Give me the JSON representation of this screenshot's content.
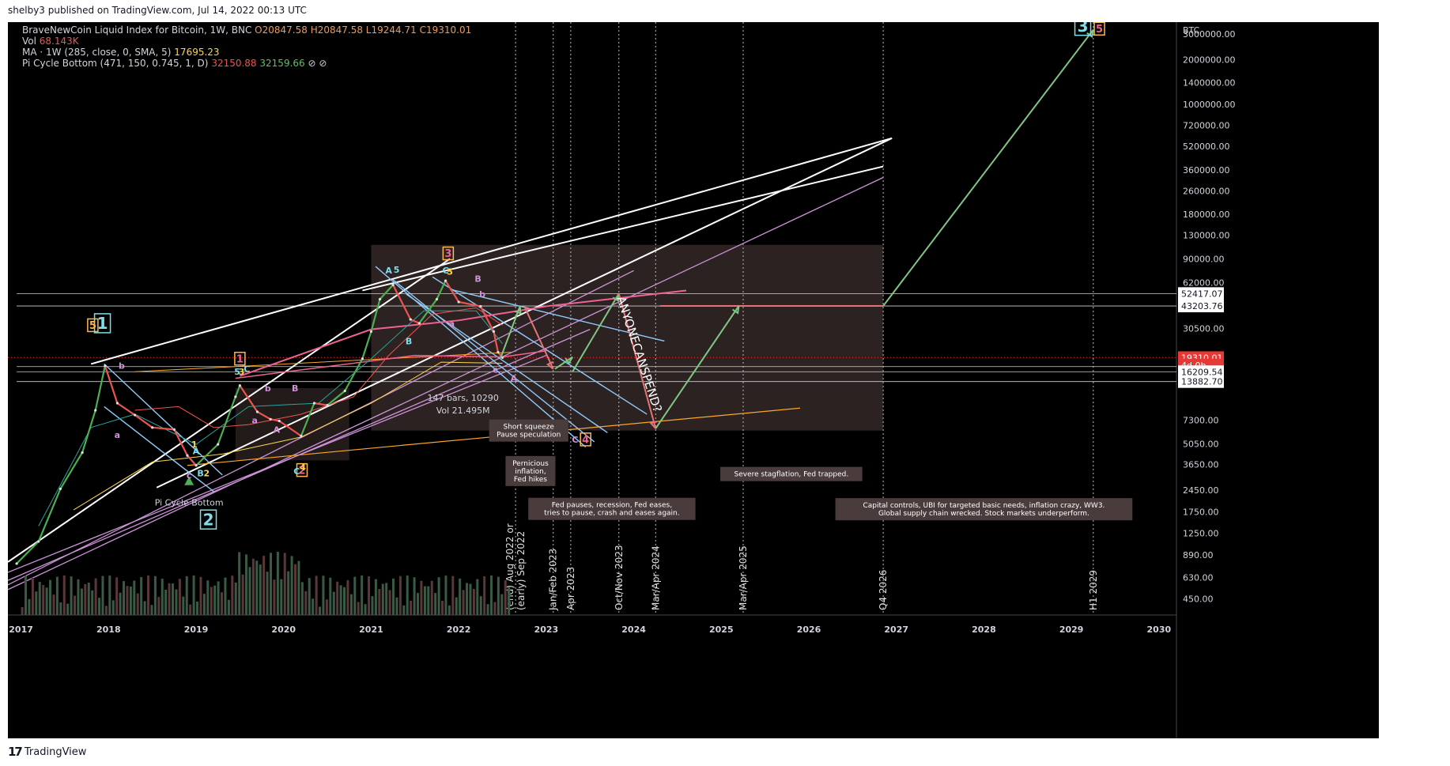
{
  "header": {
    "published": "shelby3 published on TradingView.com, Jul 14, 2022 00:13 UTC"
  },
  "legend": {
    "symbol": "BraveNewCoin Liquid Index for Bitcoin, 1W, BNC",
    "open": "O20847.58",
    "high": "H20847.58",
    "low": "L19244.71",
    "close": "C19310.01",
    "vol_label": "Vol",
    "vol": "68.143K",
    "ma_label": "MA · 1W (285, close, 0, SMA, 5)",
    "ma": "17695.23",
    "pi_label": "Pi Cycle Bottom (471, 150, 0.745, 1, D)",
    "pi1": "32150.88",
    "pi2": "32159.66",
    "pi_icons": "⊘ ⊘"
  },
  "footer": {
    "brand": "TradingView",
    "logo_glyph": "17"
  },
  "colors": {
    "bg": "#000000",
    "up": "#26a69a",
    "down": "#ef5350",
    "price_label": "#e53935",
    "wave_cyan": "#80deea",
    "wave_pink": "#f06292",
    "wave_yellow": "#ffd54f",
    "wave_purple": "#ce93d8",
    "channel_blue": "#90caf9",
    "proj_green": "#81c784",
    "proj_red": "#e57373"
  },
  "chart_data": {
    "type": "line",
    "title": "",
    "y_scale": "log",
    "y_unit": "BTC",
    "ylim": [
      350,
      3600000
    ],
    "xlim": [
      2016.85,
      2030.2
    ],
    "x_ticks": [
      "2017",
      "2018",
      "2019",
      "2020",
      "2021",
      "2022",
      "2023",
      "2024",
      "2025",
      "2026",
      "2027",
      "2028",
      "2029",
      "2030"
    ],
    "y_ticks": [
      "3000000.00",
      "2000000.00",
      "1400000.00",
      "1000000.00",
      "720000.00",
      "520000.00",
      "360000.00",
      "260000.00",
      "180000.00",
      "130000.00",
      "90000.00",
      "62000.00",
      "30500.00",
      "7300.00",
      "5050.00",
      "3650.00",
      "2450.00",
      "1750.00",
      "1250.00",
      "890.00",
      "630.00",
      "450.00"
    ],
    "price_labels": [
      {
        "text": "52417.07",
        "y": 52417,
        "style": "white"
      },
      {
        "text": "43203.76",
        "y": 43203,
        "style": "white"
      },
      {
        "text": "19310.01",
        "y": 19310,
        "style": "red"
      },
      {
        "text": "4d 0h",
        "y": 17200,
        "style": "red"
      },
      {
        "text": "16209.54",
        "y": 15500,
        "style": "white"
      },
      {
        "text": "13882.70",
        "y": 13300,
        "style": "white"
      }
    ],
    "series": [
      {
        "name": "BTC",
        "x": [
          2016.95,
          2017.2,
          2017.45,
          2017.7,
          2017.85,
          2017.96,
          2018.1,
          2018.3,
          2018.5,
          2018.75,
          2018.9,
          2019.0,
          2019.25,
          2019.45,
          2019.5,
          2019.7,
          2019.85,
          2019.95,
          2020.2,
          2020.35,
          2020.5,
          2020.7,
          2020.9,
          2021.0,
          2021.1,
          2021.25,
          2021.45,
          2021.55,
          2021.75,
          2021.85,
          2022.0,
          2022.25,
          2022.4,
          2022.45,
          2022.5
        ],
        "y": [
          780,
          1100,
          2500,
          4400,
          8500,
          17000,
          9500,
          7900,
          6500,
          6300,
          4200,
          3600,
          5000,
          10500,
          12500,
          8300,
          7400,
          7200,
          5700,
          9500,
          9200,
          11500,
          19000,
          29000,
          48000,
          60000,
          35000,
          33000,
          48000,
          64000,
          46000,
          43000,
          29000,
          21000,
          19310
        ]
      }
    ],
    "vertical_markers": [
      {
        "x": 2022.65,
        "label": "(end) Aug 2022 or\n(early) Sep 2022"
      },
      {
        "x": 2023.08,
        "label": "Jan/Feb 2023"
      },
      {
        "x": 2023.28,
        "label": "Apr 2023"
      },
      {
        "x": 2023.83,
        "label": "Oct/Nov 2023"
      },
      {
        "x": 2024.25,
        "label": "Mar/Apr 2024"
      },
      {
        "x": 2025.25,
        "label": "Mar/Apr 2025"
      },
      {
        "x": 2026.85,
        "label": "Q4 2026"
      },
      {
        "x": 2029.25,
        "label": "H1 2029"
      }
    ],
    "wave_labels": [
      {
        "text": "1",
        "x": 2017.93,
        "y": 33000,
        "color": "cyan",
        "boxed": true,
        "size": "large"
      },
      {
        "text": "5",
        "x": 2017.82,
        "y": 32000,
        "color": "orange",
        "boxed": true
      },
      {
        "text": "2",
        "x": 2019.14,
        "y": 1550,
        "color": "cyan",
        "boxed": true,
        "size": "large"
      },
      {
        "text": "1",
        "x": 2019.5,
        "y": 19000,
        "color": "pink",
        "boxed": true
      },
      {
        "text": "2",
        "x": 2020.21,
        "y": 3350,
        "color": "pink",
        "boxed": true
      },
      {
        "text": "3",
        "x": 2021.88,
        "y": 98000,
        "color": "pink",
        "boxed": true
      },
      {
        "text": "4",
        "x": 2023.45,
        "y": 5400,
        "color": "pink",
        "boxed": true
      },
      {
        "text": "3",
        "x": 2029.13,
        "y": 3400000,
        "color": "cyan",
        "boxed": true,
        "size": "large"
      },
      {
        "text": "5",
        "x": 2029.32,
        "y": 3250000,
        "color": "pink",
        "boxed": true
      },
      {
        "text": "b",
        "x": 2018.15,
        "y": 17000,
        "color": "purple"
      },
      {
        "text": "a",
        "x": 2018.1,
        "y": 5800,
        "color": "purple"
      },
      {
        "text": "c",
        "x": 2018.92,
        "y": 3100,
        "color": "purple"
      },
      {
        "text": "A",
        "x": 2019.0,
        "y": 4500,
        "color": "cyan"
      },
      {
        "text": "B",
        "x": 2019.05,
        "y": 3200,
        "color": "cyan"
      },
      {
        "text": "2",
        "x": 2019.12,
        "y": 3200,
        "color": "yellow"
      },
      {
        "text": "1",
        "x": 2018.98,
        "y": 5000,
        "color": "yellow"
      },
      {
        "text": "5",
        "x": 2019.47,
        "y": 15500,
        "color": "cyan"
      },
      {
        "text": "3",
        "x": 2019.52,
        "y": 15500,
        "color": "yellow"
      },
      {
        "text": "C",
        "x": 2019.58,
        "y": 16200,
        "color": "cyan"
      },
      {
        "text": "b",
        "x": 2019.82,
        "y": 12000,
        "color": "purple"
      },
      {
        "text": "B",
        "x": 2020.13,
        "y": 12000,
        "color": "purple"
      },
      {
        "text": "a",
        "x": 2019.67,
        "y": 7300,
        "color": "purple"
      },
      {
        "text": "A",
        "x": 2019.92,
        "y": 6300,
        "color": "purple"
      },
      {
        "text": "C",
        "x": 2020.15,
        "y": 3300,
        "color": "cyan"
      },
      {
        "text": "4",
        "x": 2020.22,
        "y": 3500,
        "color": "yellow"
      },
      {
        "text": "A",
        "x": 2021.2,
        "y": 75000,
        "color": "cyan"
      },
      {
        "text": "5",
        "x": 2021.29,
        "y": 76000,
        "color": "cyan"
      },
      {
        "text": "C",
        "x": 2021.85,
        "y": 75000,
        "color": "cyan"
      },
      {
        "text": "5",
        "x": 2021.9,
        "y": 74000,
        "color": "yellow"
      },
      {
        "text": "B",
        "x": 2022.22,
        "y": 66000,
        "color": "purple"
      },
      {
        "text": "b",
        "x": 2022.27,
        "y": 52000,
        "color": "purple"
      },
      {
        "text": "B",
        "x": 2021.43,
        "y": 25000,
        "color": "cyan"
      },
      {
        "text": "a",
        "x": 2021.92,
        "y": 33000,
        "color": "purple"
      },
      {
        "text": "c",
        "x": 2022.42,
        "y": 16000,
        "color": "purple"
      },
      {
        "text": "A",
        "x": 2022.63,
        "y": 14000,
        "color": "purple"
      },
      {
        "text": "C",
        "x": 2023.33,
        "y": 5400,
        "color": "purple"
      }
    ],
    "annotations": [
      {
        "text": "Pi Cycle Bottom",
        "x": 2018.92,
        "y": 2000,
        "style": "plain"
      },
      {
        "text": "147 bars, 10290",
        "x": 2022.05,
        "y": 10200,
        "style": "plain"
      },
      {
        "text": "Vol 21.495M",
        "x": 2022.05,
        "y": 8400,
        "style": "plain"
      },
      {
        "text": "Short squeeze\nPause speculation",
        "x": 2022.8,
        "y": 6200,
        "style": "box"
      },
      {
        "text": "Pernicious\ninflation,\nFed hikes",
        "x": 2022.82,
        "y": 3300,
        "style": "box"
      },
      {
        "text": "Fed pauses, recession, Fed eases,\ntries to pause, crash and eases again.",
        "x": 2023.75,
        "y": 1830,
        "style": "box"
      },
      {
        "text": "Severe stagflation, Fed trapped.",
        "x": 2025.8,
        "y": 3150,
        "style": "box"
      },
      {
        "text": "Capital controls, UBI for targeted basic needs, inflation crazy, WW3.\nGlobal supply chain wrecked. Stock markets underperform.",
        "x": 2028.0,
        "y": 1820,
        "style": "box"
      },
      {
        "text": "ANYONECANSPEND?",
        "x": 2024.02,
        "y": 20000,
        "style": "rotated"
      }
    ]
  }
}
